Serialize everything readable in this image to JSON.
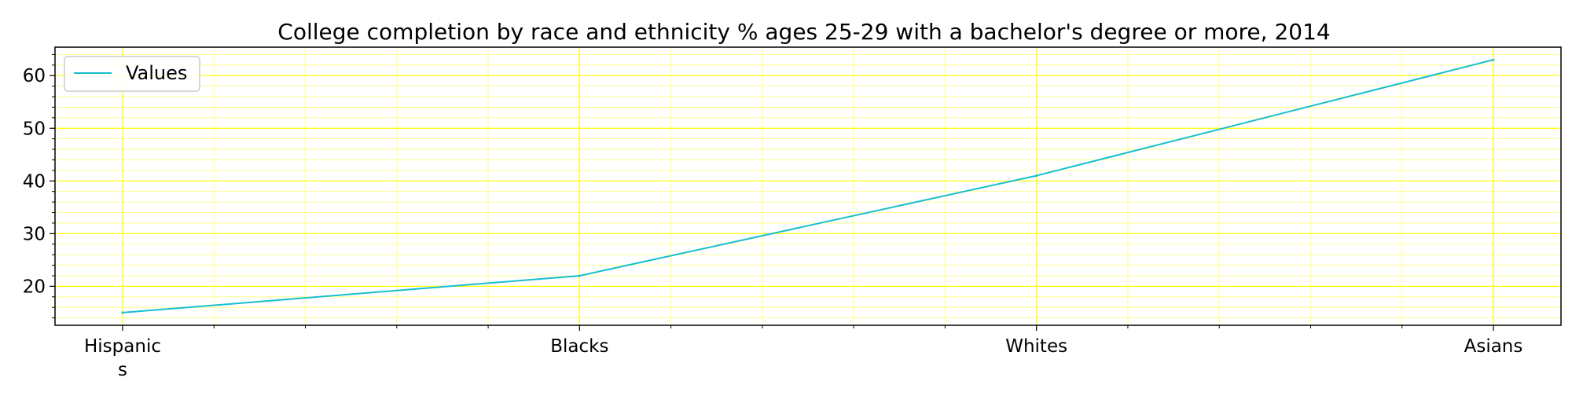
{
  "chart_data": {
    "type": "line",
    "title": "College completion by race and ethnicity % ages 25-29 with a bachelor's degree or more, 2014",
    "xlabel": "",
    "ylabel": "",
    "categories": [
      "Hispanic\ns",
      "Blacks",
      "Whites",
      "Asians"
    ],
    "series": [
      {
        "name": "Values",
        "values": [
          15,
          22,
          41,
          63
        ],
        "color": "#17becf"
      }
    ],
    "ylim": [
      12.6,
      65.4
    ],
    "yticks": [
      20,
      30,
      40,
      50,
      60
    ],
    "ytick_labels": [
      "20",
      "30",
      "40",
      "50",
      "60"
    ],
    "grid": true,
    "grid_color": "#ffff00",
    "legend_position": "upper-left"
  }
}
